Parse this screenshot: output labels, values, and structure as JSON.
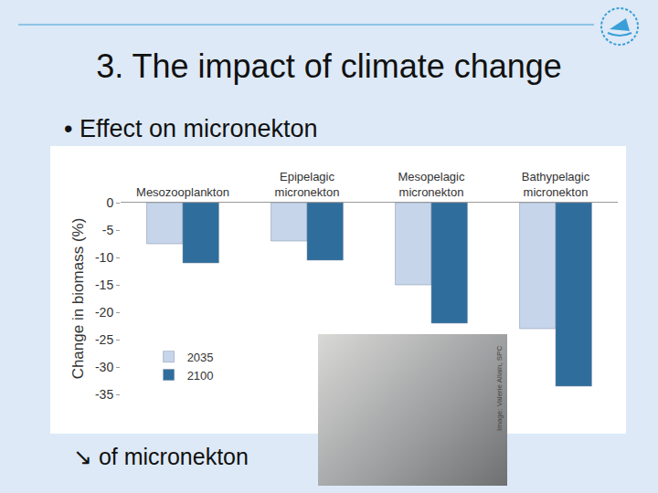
{
  "slide": {
    "title": "3. The impact of climate change",
    "bullet": "• Effect on micronekton",
    "caption": "↘ of micronekton",
    "image_credit": "Image: Valerie Allain, SPC"
  },
  "chart_data": {
    "type": "bar",
    "categories": [
      "Mesozooplankton",
      "Epipelagic micronekton",
      "Mesopelagic micronekton",
      "Bathypelagic micronekton"
    ],
    "series": [
      {
        "name": "2035",
        "color": "#c6d5ea",
        "values": [
          -7.5,
          -7,
          -15,
          -23
        ]
      },
      {
        "name": "2100",
        "color": "#2f6e9c",
        "values": [
          -11,
          -10.5,
          -22,
          -33.5
        ]
      }
    ],
    "y_label": "Change in biomass (%)",
    "ylim": [
      -35,
      0
    ],
    "yticks": [
      0,
      -5,
      -10,
      -15,
      -20,
      -25,
      -30,
      -35
    ],
    "grid": false,
    "legend": "lower left"
  }
}
